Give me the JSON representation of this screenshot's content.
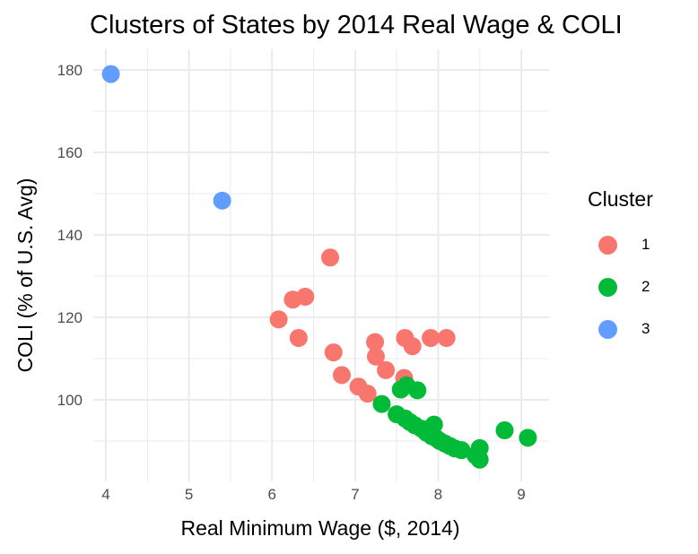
{
  "chart_data": {
    "type": "scatter",
    "title": "Clusters of States by 2014 Real Wage & COLI",
    "xlabel": "Real Minimum Wage ($, 2014)",
    "ylabel": "COLI (% of U.S. Avg)",
    "xlim": [
      3.9,
      9.3
    ],
    "ylim": [
      81,
      183
    ],
    "xticks": [
      4,
      5,
      6,
      7,
      8,
      9
    ],
    "yticks": [
      100,
      120,
      140,
      160,
      180
    ],
    "grid": true,
    "legend": {
      "title": "Cluster",
      "placement": "right"
    },
    "series": [
      {
        "name": "1",
        "color": "#F8766D",
        "points": [
          [
            6.7,
            134.5
          ],
          [
            6.4,
            125
          ],
          [
            6.25,
            124.3
          ],
          [
            6.08,
            119.5
          ],
          [
            6.32,
            115
          ],
          [
            6.74,
            111.5
          ],
          [
            6.84,
            106
          ],
          [
            7.04,
            103.2
          ],
          [
            7.15,
            101.5
          ],
          [
            7.24,
            114
          ],
          [
            7.25,
            110.5
          ],
          [
            7.37,
            107.2
          ],
          [
            7.59,
            105.3
          ],
          [
            7.6,
            115
          ],
          [
            7.69,
            113
          ],
          [
            7.91,
            115
          ],
          [
            8.1,
            115
          ]
        ]
      },
      {
        "name": "2",
        "color": "#00BA38",
        "points": [
          [
            7.32,
            99
          ],
          [
            7.55,
            102.5
          ],
          [
            7.62,
            103.5
          ],
          [
            7.75,
            102.3
          ],
          [
            7.5,
            96.5
          ],
          [
            7.6,
            95.5
          ],
          [
            7.66,
            94.6
          ],
          [
            7.72,
            93.8
          ],
          [
            7.8,
            93
          ],
          [
            7.86,
            92
          ],
          [
            7.92,
            91.2
          ],
          [
            7.95,
            94
          ],
          [
            7.98,
            90.6
          ],
          [
            8.02,
            90
          ],
          [
            8.08,
            89.4
          ],
          [
            8.14,
            88.8
          ],
          [
            8.2,
            88.2
          ],
          [
            8.28,
            87.8
          ],
          [
            8.45,
            86.5
          ],
          [
            8.5,
            85.5
          ],
          [
            8.5,
            88.3
          ],
          [
            8.8,
            92.6
          ],
          [
            9.08,
            90.8
          ]
        ]
      },
      {
        "name": "3",
        "color": "#619CFF",
        "points": [
          [
            4.06,
            179
          ],
          [
            5.4,
            148.3
          ]
        ]
      }
    ]
  }
}
